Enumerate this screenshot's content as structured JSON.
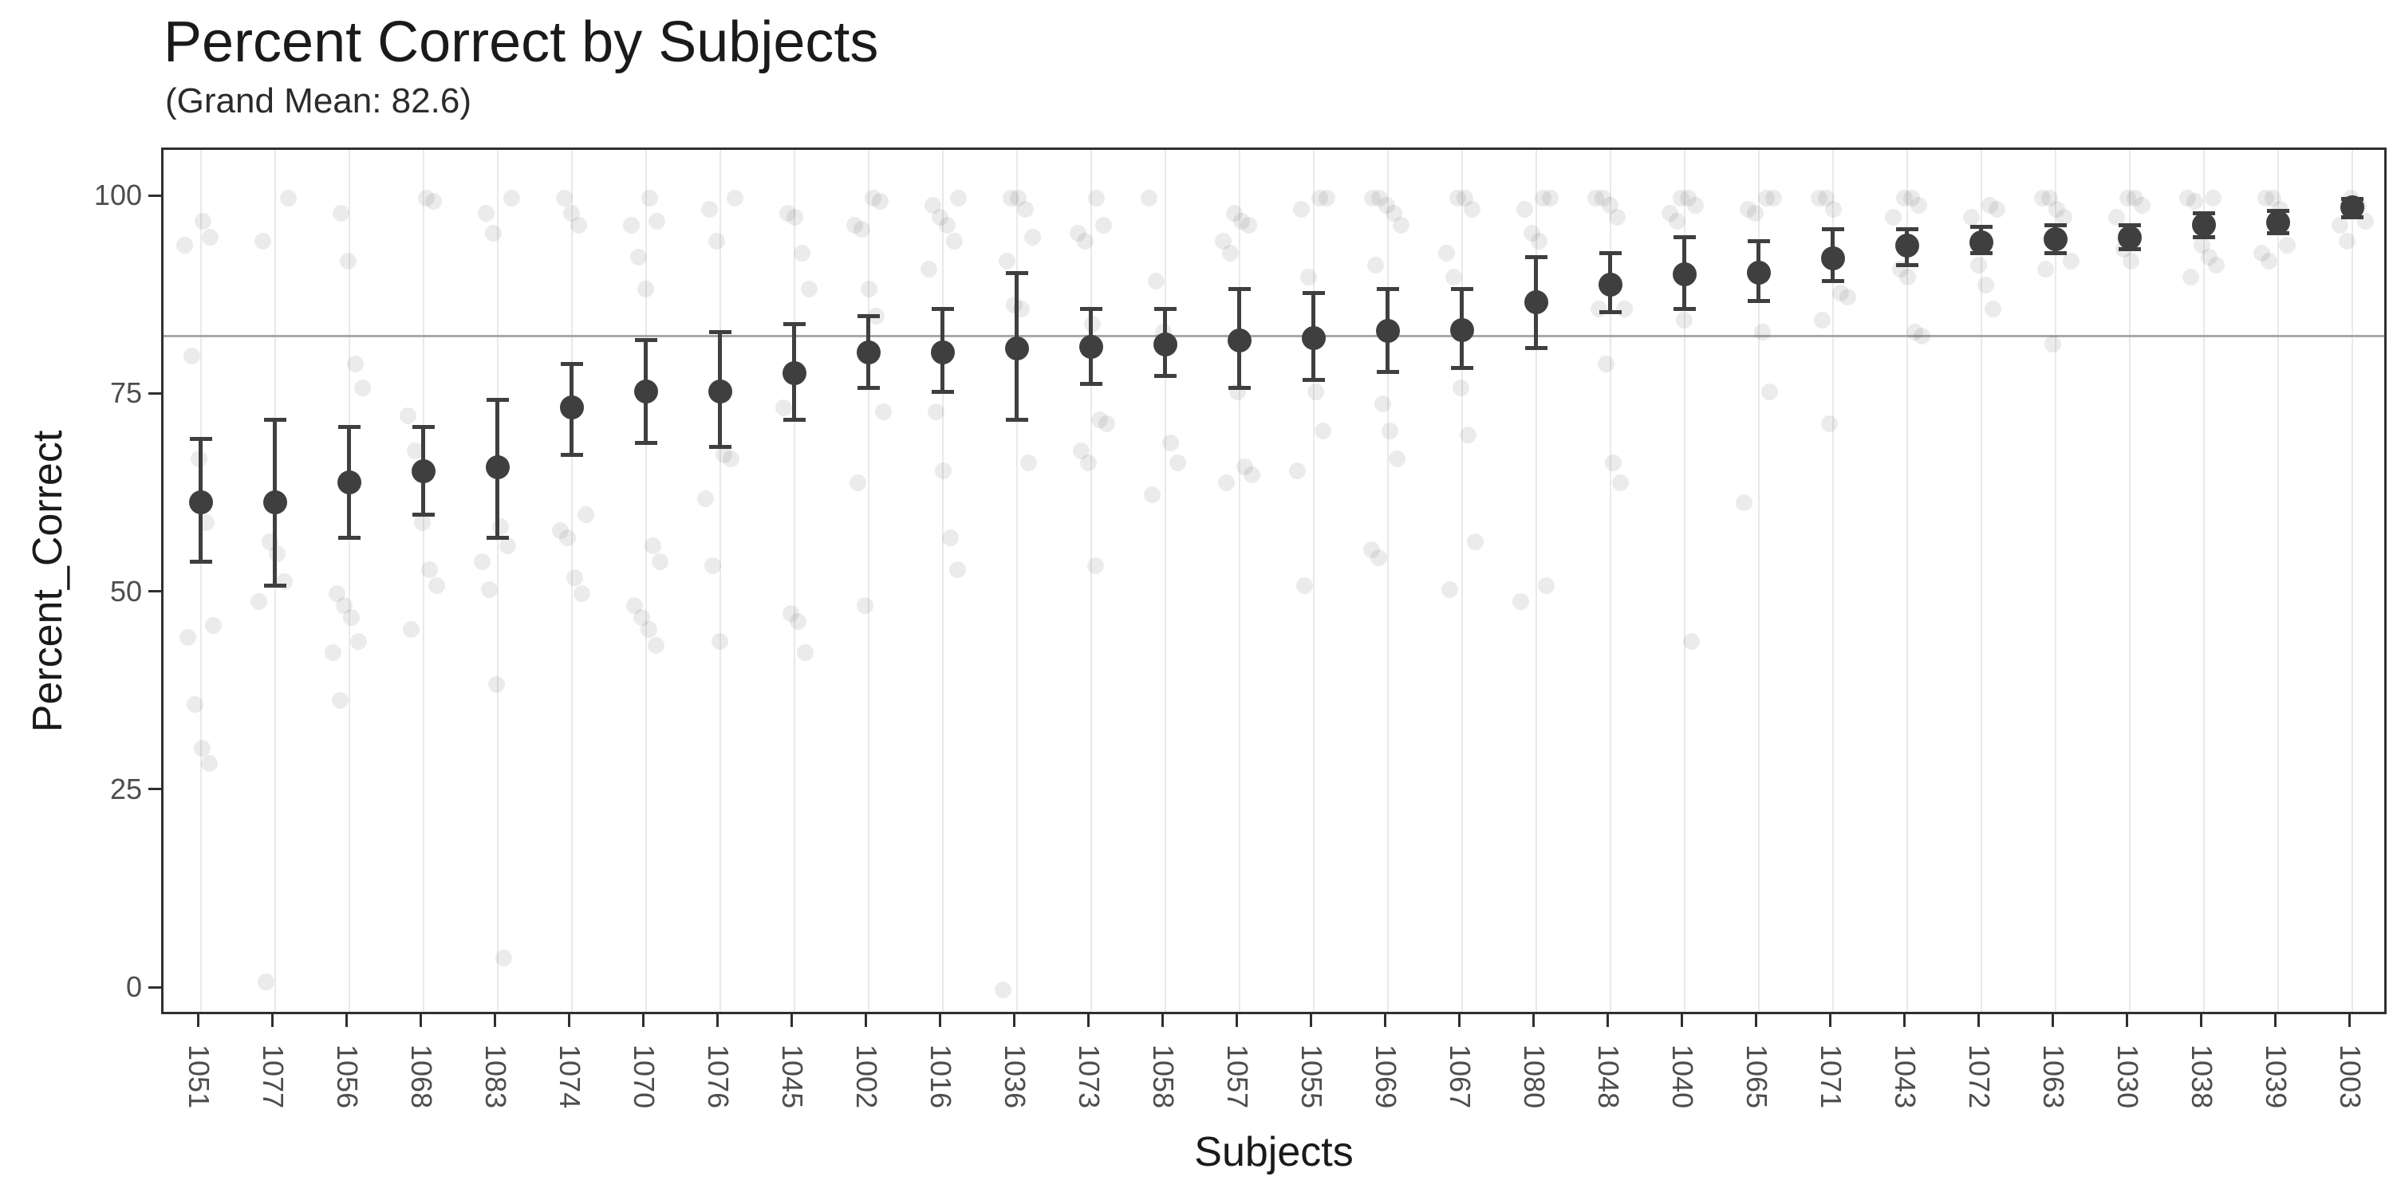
{
  "header": {
    "title": "Percent Correct by Subjects",
    "subtitle": "(Grand Mean: 82.6)"
  },
  "chart_data": {
    "type": "scatter",
    "title": "Percent Correct by Subjects",
    "subtitle": "(Grand Mean: 82.6)",
    "xlabel": "Subjects",
    "ylabel": "Percent_Correct",
    "grand_mean": 82.6,
    "y_ticks": [
      0,
      25,
      50,
      75,
      100
    ],
    "ylim": [
      -3.5,
      106
    ],
    "grid": "vertical-only",
    "legend": "none",
    "marker_notes": "dark dot = subject mean, whiskers = CI, faint dots = individual trials",
    "subjects": [
      {
        "id": "1051",
        "mean": 61.5,
        "ci_low": 54,
        "ci_high": 69.5,
        "points": [
          97,
          95,
          94,
          80,
          67,
          59,
          46,
          44.5,
          36,
          30.5,
          28.5
        ]
      },
      {
        "id": "1077",
        "mean": 61.5,
        "ci_low": 51,
        "ci_high": 72,
        "points": [
          100,
          94.5,
          56.5,
          55,
          51.5,
          49,
          1
        ]
      },
      {
        "id": "1056",
        "mean": 64,
        "ci_low": 57,
        "ci_high": 71,
        "points": [
          98,
          92,
          79,
          76,
          50,
          48.5,
          47,
          44,
          42.5,
          36.5
        ]
      },
      {
        "id": "1068",
        "mean": 65.5,
        "ci_low": 60,
        "ci_high": 71,
        "points": [
          100,
          99.5,
          72.5,
          68,
          59,
          53,
          51,
          45.5
        ]
      },
      {
        "id": "1083",
        "mean": 66,
        "ci_low": 57,
        "ci_high": 74.5,
        "points": [
          100,
          98,
          95.5,
          58.5,
          56,
          54,
          50.5,
          38.5,
          4
        ]
      },
      {
        "id": "1074",
        "mean": 73.5,
        "ci_low": 67.5,
        "ci_high": 79,
        "points": [
          100,
          98,
          96.5,
          60,
          58,
          57,
          52,
          50
        ]
      },
      {
        "id": "1070",
        "mean": 75.5,
        "ci_low": 69,
        "ci_high": 82,
        "points": [
          100,
          97,
          96.5,
          92.5,
          88.5,
          56,
          54,
          48.5,
          47,
          45.5,
          43.5
        ]
      },
      {
        "id": "1076",
        "mean": 75.5,
        "ci_low": 68.5,
        "ci_high": 83,
        "points": [
          100,
          98.5,
          94.5,
          67.5,
          67,
          62,
          53.5,
          44
        ]
      },
      {
        "id": "1045",
        "mean": 77.8,
        "ci_low": 72,
        "ci_high": 84,
        "points": [
          98,
          97.5,
          93,
          88.5,
          73.5,
          47.5,
          46.5,
          42.5
        ]
      },
      {
        "id": "1002",
        "mean": 80.5,
        "ci_low": 76,
        "ci_high": 85,
        "points": [
          100,
          99.5,
          96.5,
          96,
          88.5,
          85,
          73,
          64,
          48.5
        ]
      },
      {
        "id": "1016",
        "mean": 80.5,
        "ci_low": 75.5,
        "ci_high": 86,
        "points": [
          100,
          99,
          97.5,
          96.5,
          94.5,
          91,
          73,
          65.5,
          57,
          53
        ]
      },
      {
        "id": "1036",
        "mean": 81,
        "ci_low": 72,
        "ci_high": 90.5,
        "points": [
          100,
          100,
          98.5,
          95,
          92,
          86.5,
          86,
          66.5,
          0
        ]
      },
      {
        "id": "1073",
        "mean": 81.2,
        "ci_low": 76.5,
        "ci_high": 86,
        "points": [
          100,
          96.5,
          95.5,
          94.5,
          84,
          72,
          71.5,
          68,
          66.5,
          53.5
        ]
      },
      {
        "id": "1058",
        "mean": 81.5,
        "ci_low": 77.5,
        "ci_high": 86,
        "points": [
          100,
          89.5,
          83,
          69,
          66.5,
          62.5
        ]
      },
      {
        "id": "1057",
        "mean": 82,
        "ci_low": 76,
        "ci_high": 88.5,
        "points": [
          98,
          97,
          96.5,
          94.5,
          93,
          75.5,
          66,
          65,
          64
        ]
      },
      {
        "id": "1055",
        "mean": 82.3,
        "ci_low": 77,
        "ci_high": 88,
        "points": [
          100,
          100,
          98.5,
          90,
          75.5,
          70.5,
          65.5,
          51
        ]
      },
      {
        "id": "1069",
        "mean": 83.2,
        "ci_low": 78,
        "ci_high": 88.5,
        "points": [
          100,
          100,
          99,
          98,
          96.5,
          91.5,
          74,
          70.5,
          67,
          55.5,
          54.5
        ]
      },
      {
        "id": "1067",
        "mean": 83.3,
        "ci_low": 78.5,
        "ci_high": 88.5,
        "points": [
          100,
          100,
          98.5,
          93,
          90,
          76,
          70,
          56.5,
          50.5
        ]
      },
      {
        "id": "1080",
        "mean": 86.8,
        "ci_low": 81,
        "ci_high": 92.5,
        "points": [
          100,
          100,
          98.5,
          95.5,
          94.5,
          51,
          49
        ]
      },
      {
        "id": "1048",
        "mean": 89,
        "ci_low": 85.5,
        "ci_high": 93,
        "points": [
          100,
          100,
          99,
          97.5,
          86,
          86,
          79,
          66.5,
          64
        ]
      },
      {
        "id": "1040",
        "mean": 90.3,
        "ci_low": 86,
        "ci_high": 95,
        "points": [
          100,
          100,
          99,
          98,
          97,
          84.5,
          44
        ]
      },
      {
        "id": "1065",
        "mean": 90.5,
        "ci_low": 87,
        "ci_high": 94.5,
        "points": [
          100,
          100,
          98.5,
          98,
          83,
          75.5,
          61.5
        ]
      },
      {
        "id": "1071",
        "mean": 92.3,
        "ci_low": 89.5,
        "ci_high": 96,
        "points": [
          100,
          100,
          98.5,
          88,
          87.5,
          84.5,
          71.5
        ]
      },
      {
        "id": "1043",
        "mean": 94,
        "ci_low": 91.5,
        "ci_high": 96,
        "points": [
          100,
          100,
          99,
          97.5,
          91,
          90,
          83,
          82.5
        ]
      },
      {
        "id": "1072",
        "mean": 94.4,
        "ci_low": 93,
        "ci_high": 96.3,
        "points": [
          99,
          98.5,
          97.5,
          91.5,
          89,
          86
        ]
      },
      {
        "id": "1063",
        "mean": 94.8,
        "ci_low": 93,
        "ci_high": 96.5,
        "points": [
          100,
          100,
          98.5,
          97.5,
          92,
          91,
          81.5
        ]
      },
      {
        "id": "1030",
        "mean": 95,
        "ci_low": 93.5,
        "ci_high": 96.5,
        "points": [
          100,
          100,
          99,
          97.5,
          93.5,
          92
        ]
      },
      {
        "id": "1038",
        "mean": 96.6,
        "ci_low": 95,
        "ci_high": 98,
        "points": [
          100,
          100,
          99.5,
          94,
          92.5,
          91.5,
          90
        ]
      },
      {
        "id": "1039",
        "mean": 96.9,
        "ci_low": 95.5,
        "ci_high": 98.3,
        "points": [
          100,
          100,
          98.5,
          94,
          93,
          92
        ]
      },
      {
        "id": "1003",
        "mean": 98.8,
        "ci_low": 97.5,
        "ci_high": 99.8,
        "points": [
          100,
          99,
          97,
          96.5,
          94.5
        ]
      }
    ]
  },
  "colors": {
    "mean_point": "#3f3f3f",
    "error_bar": "#3f3f3f",
    "jitter_point": "rgba(60,60,60,0.10)",
    "grand_mean_line": "#a9a9a9",
    "gridline": "#e9e9e9",
    "axis_text": "#4d4d4d",
    "title_text": "#1a1a1a",
    "panel_border": "#2f2f2f"
  }
}
